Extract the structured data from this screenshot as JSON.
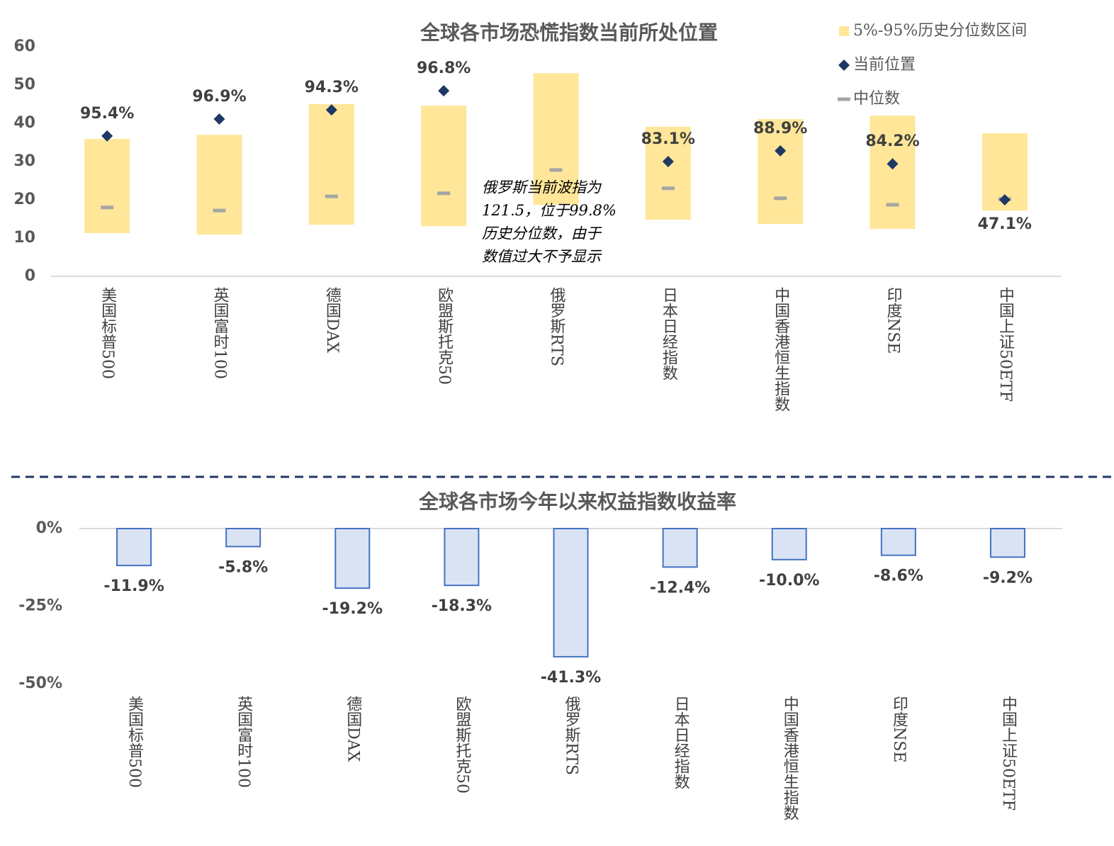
{
  "chart_data": [
    {
      "type": "range",
      "title": "全球各市场恐慌指数当前所处位置",
      "categories": [
        "美国标普500",
        "英国富时100",
        "德国DAX",
        "欧盟斯托克50",
        "俄罗斯RTS",
        "日本日经指数",
        "中国香港恒生指数",
        "印度NSE",
        "中国上证50ETF"
      ],
      "series": [
        {
          "name": "5%-95%历史分位数区间",
          "color": "#ffe699",
          "low": [
            11.3,
            10.9,
            13.5,
            13.1,
            18.7,
            14.8,
            13.7,
            12.4,
            17.2
          ],
          "high": [
            35.9,
            37.0,
            45.0,
            44.6,
            53.1,
            39.1,
            41.1,
            42.0,
            37.4
          ]
        },
        {
          "name": "当前位置",
          "color": "#1f3864",
          "values": [
            36.7,
            41.1,
            43.5,
            48.5,
            null,
            30.0,
            32.8,
            29.4,
            20.0
          ]
        },
        {
          "name": "中位数",
          "color": "#a5a5a5",
          "values": [
            18.0,
            17.2,
            20.9,
            21.7,
            27.8,
            23.0,
            20.4,
            18.7,
            20.2
          ]
        }
      ],
      "percentiles": [
        95.4,
        96.9,
        94.3,
        96.8,
        null,
        83.1,
        88.9,
        84.2,
        47.1
      ],
      "percentile_labels": [
        "95.4%",
        "96.9%",
        "94.3%",
        "96.8%",
        null,
        "83.1%",
        "88.9%",
        "84.2%",
        "47.1%"
      ],
      "annotation": [
        "俄罗斯当前波指为",
        "121.5，位于99.8%",
        "历史分位数，由于",
        "数值过大不予显示"
      ],
      "ylim": [
        0,
        60
      ],
      "yticks": [
        0,
        10,
        20,
        30,
        40,
        50,
        60
      ]
    },
    {
      "type": "bar",
      "title": "全球各市场今年以来权益指数收益率",
      "categories": [
        "美国标普500",
        "英国富时100",
        "德国DAX",
        "欧盟斯托克50",
        "俄罗斯RTS",
        "日本日经指数",
        "中国香港恒生指数",
        "印度NSE",
        "中国上证50ETF"
      ],
      "values": [
        -11.9,
        -5.8,
        -19.2,
        -18.3,
        -41.3,
        -12.4,
        -10.0,
        -8.6,
        -9.2
      ],
      "value_labels": [
        "-11.9%",
        "-5.8%",
        "-19.2%",
        "-18.3%",
        "-41.3%",
        "-12.4%",
        "-10.0%",
        "-8.6%",
        "-9.2%"
      ],
      "color": "#dae3f3",
      "edge_color": "#4472c4",
      "ylim": [
        -50,
        0
      ],
      "yticks": [
        {
          "value": 0,
          "label": "0%"
        },
        {
          "value": -25,
          "label": "-25%"
        },
        {
          "value": -50,
          "label": "-50%"
        }
      ]
    }
  ]
}
